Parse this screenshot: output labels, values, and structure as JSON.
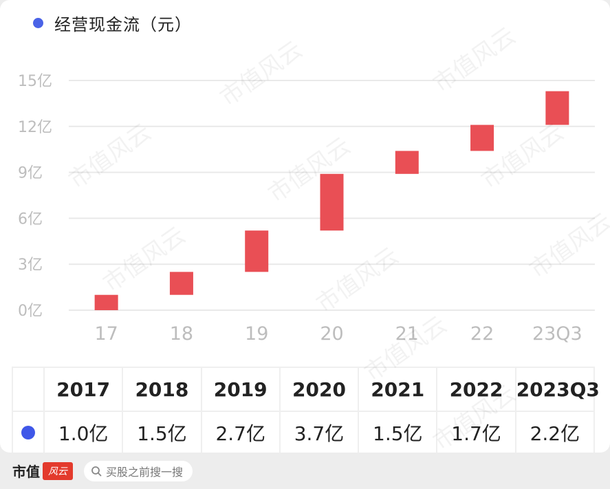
{
  "legend": {
    "label": "经营现金流（元）",
    "color": "#4a63e7"
  },
  "chart_data": {
    "type": "bar",
    "subtype": "waterfall",
    "series_name": "经营现金流（元）",
    "categories": [
      "17",
      "18",
      "19",
      "20",
      "21",
      "22",
      "23Q3"
    ],
    "increments": [
      1.0,
      1.5,
      2.7,
      3.7,
      1.5,
      1.7,
      2.2
    ],
    "unit": "亿",
    "y_ticks": [
      "0亿",
      "3亿",
      "6亿",
      "9亿",
      "12亿",
      "15亿"
    ],
    "y_tick_values": [
      0,
      3,
      6,
      9,
      12,
      15
    ],
    "ylim": [
      0,
      15
    ],
    "grid": true,
    "bar_color": "#e94f55"
  },
  "table": {
    "headers": [
      "2017",
      "2018",
      "2019",
      "2020",
      "2021",
      "2022",
      "2023Q3"
    ],
    "values": [
      "1.0亿",
      "1.5亿",
      "2.7亿",
      "3.7亿",
      "1.5亿",
      "1.7亿",
      "2.2亿"
    ],
    "row_dot_color": "#3f57e8"
  },
  "footer": {
    "brand": "市值",
    "brand_stamp": "风云",
    "search_placeholder": "买股之前搜一搜",
    "icon": "search-icon"
  },
  "watermark": "市值风云"
}
